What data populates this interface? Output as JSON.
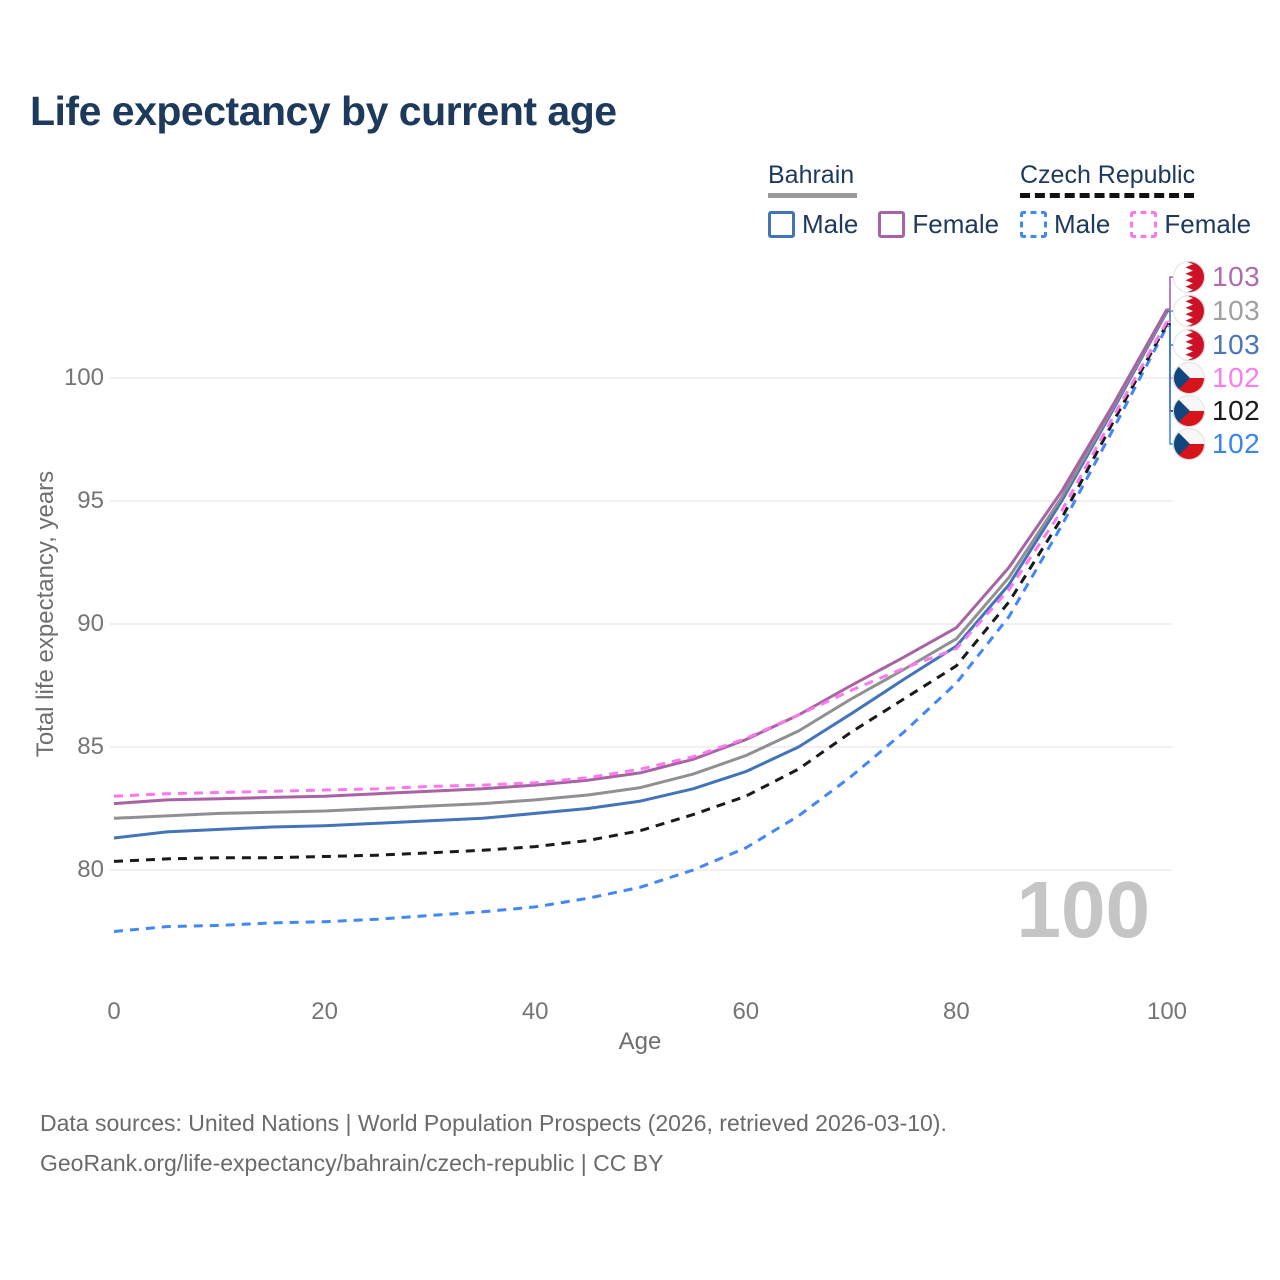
{
  "title": "Life expectancy by current age",
  "legend": {
    "groups": [
      {
        "title": "Bahrain",
        "line_style": "solid",
        "underline_color": "#9a9a9a",
        "items": [
          {
            "label": "Male",
            "color": "#4374b8",
            "dashed": false
          },
          {
            "label": "Female",
            "color": "#a763a4",
            "dashed": false
          }
        ]
      },
      {
        "title": "Czech Republic",
        "line_style": "dashed",
        "underline_color": "#111111",
        "items": [
          {
            "label": "Male",
            "color": "#4287f5",
            "dashed": true
          },
          {
            "label": "Female",
            "color": "#fb78ee",
            "dashed": true
          }
        ]
      }
    ]
  },
  "chart_data": {
    "type": "line",
    "title": "Life expectancy by current age",
    "xlabel": "Age",
    "ylabel": "Total life expectancy, years",
    "xticks": [
      0,
      20,
      40,
      60,
      80,
      100
    ],
    "yticks": [
      80,
      85,
      90,
      95,
      100
    ],
    "xlim": [
      0,
      100
    ],
    "ylim": [
      76.5,
      103.5
    ],
    "grid": "horizontal-only",
    "legend_position": "top-right",
    "x": [
      0,
      5,
      10,
      15,
      20,
      25,
      30,
      35,
      40,
      45,
      50,
      55,
      60,
      65,
      70,
      75,
      80,
      85,
      90,
      95,
      100
    ],
    "series": [
      {
        "name": "Bahrain Female",
        "country": "Bahrain",
        "sex": "Female",
        "color": "#a763a4",
        "dashed": false,
        "values": [
          82.7,
          82.85,
          82.9,
          82.95,
          83.0,
          83.1,
          83.2,
          83.3,
          83.45,
          83.65,
          83.95,
          84.5,
          85.3,
          86.3,
          87.5,
          88.65,
          89.85,
          92.3,
          95.4,
          99.0,
          102.8
        ]
      },
      {
        "name": "Bahrain Both sexes",
        "country": "Bahrain",
        "sex": "Both",
        "color": "#8f9094",
        "dashed": false,
        "values": [
          82.1,
          82.2,
          82.3,
          82.35,
          82.4,
          82.5,
          82.6,
          82.7,
          82.85,
          83.05,
          83.35,
          83.9,
          84.65,
          85.65,
          86.95,
          88.15,
          89.4,
          91.9,
          95.15,
          98.9,
          102.75
        ]
      },
      {
        "name": "Bahrain Male",
        "country": "Bahrain",
        "sex": "Male",
        "color": "#4374b8",
        "dashed": false,
        "values": [
          81.3,
          81.55,
          81.65,
          81.75,
          81.8,
          81.9,
          82.0,
          82.1,
          82.3,
          82.5,
          82.8,
          83.3,
          84.0,
          85.0,
          86.35,
          87.75,
          89.1,
          91.6,
          95.0,
          98.8,
          102.7
        ]
      },
      {
        "name": "Czech Republic Female",
        "country": "Czech Republic",
        "sex": "Female",
        "color": "#fb78ee",
        "dashed": true,
        "values": [
          83.0,
          83.1,
          83.15,
          83.2,
          83.25,
          83.3,
          83.4,
          83.45,
          83.55,
          83.75,
          84.1,
          84.6,
          85.35,
          86.3,
          87.3,
          88.2,
          89.0,
          91.4,
          94.6,
          98.5,
          102.3
        ]
      },
      {
        "name": "Czech Republic Both sexes",
        "country": "Czech Republic",
        "sex": "Both",
        "color": "#1a1a1a",
        "dashed": true,
        "values": [
          80.35,
          80.45,
          80.5,
          80.5,
          80.55,
          80.6,
          80.7,
          80.8,
          80.95,
          81.2,
          81.6,
          82.25,
          83.0,
          84.1,
          85.6,
          86.95,
          88.3,
          90.9,
          94.3,
          98.3,
          102.2
        ]
      },
      {
        "name": "Czech Republic Male",
        "country": "Czech Republic",
        "sex": "Male",
        "color": "#4287f5",
        "dashed": true,
        "values": [
          77.5,
          77.7,
          77.75,
          77.85,
          77.9,
          78.0,
          78.15,
          78.3,
          78.5,
          78.85,
          79.3,
          80.0,
          80.9,
          82.2,
          83.8,
          85.6,
          87.6,
          90.3,
          94.0,
          98.0,
          102.1
        ]
      }
    ]
  },
  "end_labels": [
    {
      "series": "Bahrain Female",
      "flag": "bahrain",
      "value": "103",
      "color": "#b06ab0"
    },
    {
      "series": "Bahrain Both sexes",
      "flag": "bahrain",
      "value": "103",
      "color": "#a0a0a0"
    },
    {
      "series": "Bahrain Male",
      "flag": "bahrain",
      "value": "103",
      "color": "#4a76b8"
    },
    {
      "series": "Czech Republic Female",
      "flag": "czech",
      "value": "102",
      "color": "#f87df0"
    },
    {
      "series": "Czech Republic Both sexes",
      "flag": "czech",
      "value": "102",
      "color": "#1a1a1a"
    },
    {
      "series": "Czech Republic Male",
      "flag": "czech",
      "value": "102",
      "color": "#3c83f0"
    }
  ],
  "axes": {
    "x_title": "Age",
    "y_title": "Total life expectancy, years"
  },
  "watermark": "100",
  "footer": {
    "line1": "Data sources: United Nations | World Population Prospects (2026, retrieved 2026-03-10).",
    "line2": "GeoRank.org/life-expectancy/bahrain/czech-republic | CC BY"
  }
}
